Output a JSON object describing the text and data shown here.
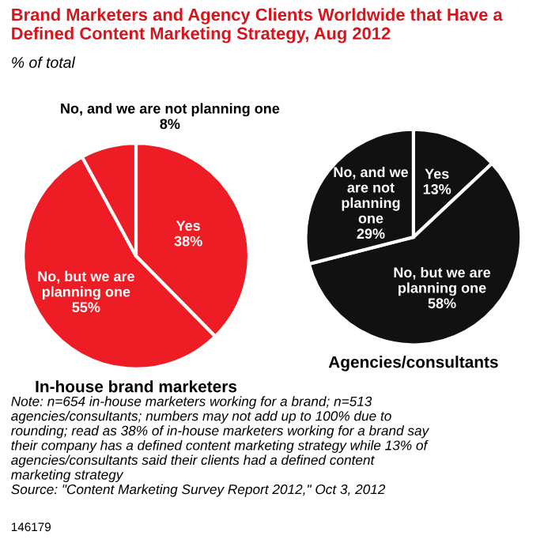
{
  "chart_data": [
    {
      "type": "pie",
      "title": "Brand Marketers and Agency Clients Worldwide that Have a Defined Content Marketing Strategy, Aug 2012",
      "subtitle": "% of total",
      "xlabel": "In-house brand marketers",
      "categories": [
        "Yes",
        "No, but we are planning one",
        "No, and we are not planning one"
      ],
      "values": [
        38,
        55,
        8
      ],
      "value_labels": [
        "38%",
        "55%",
        "8%"
      ],
      "colors": [
        "#ee1c25",
        "#ee1c25",
        "#ee1c25"
      ],
      "annotations": [
        "Note: n=654 in-house marketers working for a brand; n=513 agencies/consultants; numbers may not add up to 100% due to rounding; read as 38% of in-house marketers working for a brand say their company has a defined content marketing strategy while 13% of agencies/consultants said their clients had a defined content marketing strategy",
        "Source: \"Content Marketing Survey Report 2012,\" Oct 3, 2012",
        "146179"
      ]
    },
    {
      "type": "pie",
      "xlabel": "Agencies/consultants",
      "categories": [
        "Yes",
        "No, but we are planning one",
        "No, and we are not planning one"
      ],
      "values": [
        13,
        58,
        29
      ],
      "value_labels": [
        "13%",
        "58%",
        "29%"
      ],
      "colors": [
        "#111111",
        "#111111",
        "#111111"
      ]
    }
  ]
}
